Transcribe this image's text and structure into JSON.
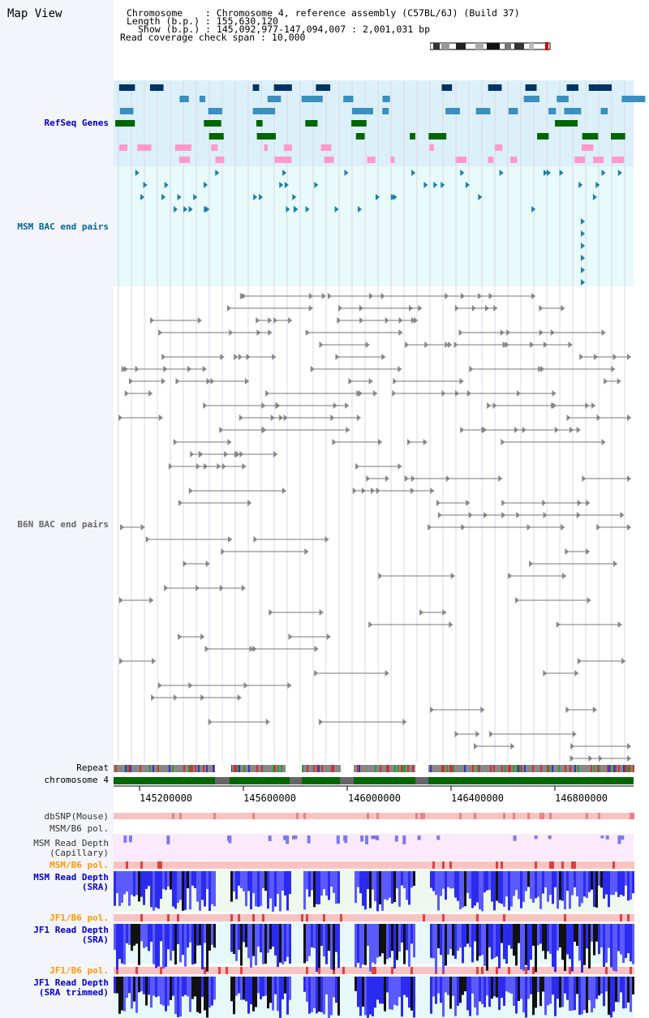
{
  "title": "Map View",
  "header": {
    "chromosome": "Chromosome    : Chromosome 4, reference assembly (C57BL/6J) (Build 37)",
    "length": "Length (b.p.) : 155,630,120",
    "show": "Show (b.p.) : 145,092,977-147,094,007 : 2,001,031 bp",
    "coverage": "Read coverage check span : 10,000"
  },
  "tracks": {
    "refseq": {
      "label": "RefSeq Genes",
      "color": "#0000cc"
    },
    "msm_bac": {
      "label": "MSM BAC end pairs",
      "color": "#006699"
    },
    "b6n_bac": {
      "label": "B6N BAC end pairs",
      "color": "#666666"
    },
    "repeat": {
      "label": "Repeat"
    },
    "chrom": {
      "label": "chromosome 4"
    },
    "dbsnp": {
      "label": "dbSNP(Mouse)"
    },
    "msm_pol": {
      "label": "MSM/B6 pol."
    },
    "msm_cap_1": {
      "label": "MSM Read Depth"
    },
    "msm_cap_2": {
      "label": "(Capillary)"
    },
    "msm_sra_pol": {
      "label": "MSM/B6 pol."
    },
    "msm_sra_1": {
      "label": "MSM Read Depth"
    },
    "msm_sra_2": {
      "label": "(SRA)"
    },
    "jf1_pol": {
      "label": "JF1/B6 pol."
    },
    "jf1_sra_1": {
      "label": "JF1 Read Depth"
    },
    "jf1_sra_2": {
      "label": "(SRA)"
    },
    "jf1_pol2": {
      "label": "JF1/B6 pol."
    },
    "jf1_trim_1": {
      "label": "JF1 Read Depth"
    },
    "jf1_trim_2": {
      "label": "(SRA trimmed)"
    }
  },
  "axis": {
    "ticks": [
      "145200000",
      "145600000",
      "146000000",
      "146400000",
      "146800000"
    ]
  },
  "colors": {
    "refseq_bg": "#dcf0fa",
    "bac_bg": "#e8fafa",
    "gene_dark": "#003366",
    "gene_mid": "#3a8fbf",
    "gene_green": "#006600",
    "gene_pink": "#ff99cc",
    "chrom_green": "#006600",
    "depth_blue": "#3333ff",
    "orange": "#ff9900"
  }
}
